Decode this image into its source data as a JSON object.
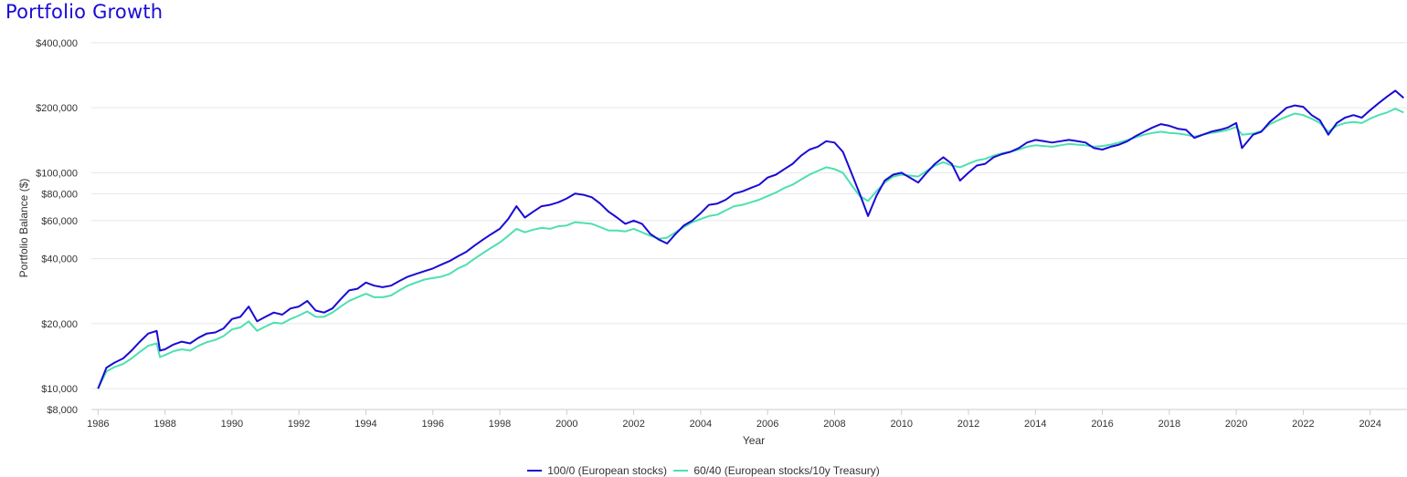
{
  "title": "Portfolio Growth",
  "chart_data": {
    "type": "line",
    "title": "Portfolio Growth",
    "xlabel": "Year",
    "ylabel": "Portfolio Balance ($)",
    "yscale": "log",
    "xlim": [
      1985.8,
      2025.1
    ],
    "ylim": [
      8000,
      530000
    ],
    "y_ticks": [
      400000,
      200000,
      100000,
      80000,
      60000,
      40000,
      20000,
      10000,
      8000
    ],
    "y_tick_labels": [
      "$400,000",
      "$200,000",
      "$100,000",
      "$80,000",
      "$60,000",
      "$40,000",
      "$20,000",
      "$10,000",
      "$8,000"
    ],
    "x_ticks": [
      1986,
      1988,
      1990,
      1992,
      1994,
      1996,
      1998,
      2000,
      2002,
      2004,
      2006,
      2008,
      2010,
      2012,
      2014,
      2016,
      2018,
      2020,
      2022,
      2024
    ],
    "x_tick_labels": [
      "1986",
      "1988",
      "1990",
      "1992",
      "1994",
      "1996",
      "1998",
      "2000",
      "2002",
      "2004",
      "2006",
      "2008",
      "2010",
      "2012",
      "2014",
      "2016",
      "2018",
      "2020",
      "2022",
      "2024"
    ],
    "grid": true,
    "legend_position": "bottom",
    "series": [
      {
        "name": "100/0 (European stocks)",
        "color": "#1a0ad4",
        "x": [
          1986.0,
          1986.25,
          1986.5,
          1986.75,
          1987.0,
          1987.25,
          1987.5,
          1987.75,
          1987.85,
          1988.0,
          1988.25,
          1988.5,
          1988.75,
          1989.0,
          1989.25,
          1989.5,
          1989.75,
          1990.0,
          1990.25,
          1990.5,
          1990.75,
          1991.0,
          1991.25,
          1991.5,
          1991.75,
          1992.0,
          1992.25,
          1992.5,
          1992.75,
          1993.0,
          1993.25,
          1993.5,
          1993.75,
          1994.0,
          1994.25,
          1994.5,
          1994.75,
          1995.0,
          1995.25,
          1995.5,
          1995.75,
          1996.0,
          1996.25,
          1996.5,
          1996.75,
          1997.0,
          1997.25,
          1997.5,
          1997.75,
          1998.0,
          1998.25,
          1998.5,
          1998.75,
          1999.0,
          1999.25,
          1999.5,
          1999.75,
          2000.0,
          2000.25,
          2000.5,
          2000.75,
          2001.0,
          2001.25,
          2001.5,
          2001.75,
          2002.0,
          2002.25,
          2002.5,
          2002.75,
          2003.0,
          2003.25,
          2003.5,
          2003.75,
          2004.0,
          2004.25,
          2004.5,
          2004.75,
          2005.0,
          2005.25,
          2005.5,
          2005.75,
          2006.0,
          2006.25,
          2006.5,
          2006.75,
          2007.0,
          2007.25,
          2007.5,
          2007.75,
          2008.0,
          2008.25,
          2008.5,
          2008.75,
          2009.0,
          2009.25,
          2009.5,
          2009.75,
          2010.0,
          2010.25,
          2010.5,
          2010.75,
          2011.0,
          2011.25,
          2011.5,
          2011.75,
          2012.0,
          2012.25,
          2012.5,
          2012.75,
          2013.0,
          2013.25,
          2013.5,
          2013.75,
          2014.0,
          2014.25,
          2014.5,
          2014.75,
          2015.0,
          2015.25,
          2015.5,
          2015.75,
          2016.0,
          2016.25,
          2016.5,
          2016.75,
          2017.0,
          2017.25,
          2017.5,
          2017.75,
          2018.0,
          2018.25,
          2018.5,
          2018.75,
          2019.0,
          2019.25,
          2019.5,
          2019.75,
          2020.0,
          2020.17,
          2020.5,
          2020.75,
          2021.0,
          2021.25,
          2021.5,
          2021.75,
          2022.0,
          2022.25,
          2022.5,
          2022.75,
          2023.0,
          2023.25,
          2023.5,
          2023.75,
          2024.0,
          2024.25,
          2024.5,
          2024.75,
          2025.0
        ],
        "values": [
          10000,
          12500,
          13200,
          13800,
          15000,
          16500,
          18000,
          18500,
          15000,
          15200,
          16000,
          16500,
          16200,
          17200,
          18000,
          18200,
          19000,
          21000,
          21500,
          24000,
          20500,
          21500,
          22500,
          22000,
          23500,
          24000,
          25500,
          23000,
          22500,
          23500,
          26000,
          28500,
          29000,
          31000,
          30000,
          29500,
          30000,
          31500,
          33000,
          34000,
          35000,
          36000,
          37500,
          39000,
          41000,
          43000,
          46000,
          49000,
          52000,
          55000,
          61000,
          70000,
          62000,
          66000,
          70000,
          71000,
          73000,
          76000,
          80000,
          79000,
          77000,
          72000,
          66000,
          62000,
          58000,
          60000,
          58000,
          52000,
          49000,
          47000,
          52000,
          57000,
          60000,
          65000,
          71000,
          72000,
          75000,
          80000,
          82000,
          85000,
          88000,
          95000,
          98000,
          104000,
          110000,
          120000,
          128000,
          132000,
          140000,
          138000,
          125000,
          100000,
          80000,
          63000,
          78000,
          92000,
          98000,
          100000,
          95000,
          90000,
          100000,
          110000,
          118000,
          110000,
          92000,
          100000,
          108000,
          110000,
          118000,
          122000,
          125000,
          130000,
          138000,
          142000,
          140000,
          138000,
          140000,
          142000,
          140000,
          138000,
          130000,
          128000,
          132000,
          135000,
          140000,
          148000,
          155000,
          162000,
          168000,
          165000,
          160000,
          158000,
          145000,
          150000,
          155000,
          158000,
          162000,
          170000,
          130000,
          150000,
          155000,
          172000,
          185000,
          200000,
          205000,
          202000,
          185000,
          175000,
          150000,
          170000,
          180000,
          185000,
          180000,
          195000,
          210000,
          225000,
          240000,
          222000
        ]
      },
      {
        "name": "60/40 (European stocks/10y Treasury)",
        "color": "#4de0b0",
        "x": [
          1986.0,
          1986.25,
          1986.5,
          1986.75,
          1987.0,
          1987.25,
          1987.5,
          1987.75,
          1987.85,
          1988.0,
          1988.25,
          1988.5,
          1988.75,
          1989.0,
          1989.25,
          1989.5,
          1989.75,
          1990.0,
          1990.25,
          1990.5,
          1990.75,
          1991.0,
          1991.25,
          1991.5,
          1991.75,
          1992.0,
          1992.25,
          1992.5,
          1992.75,
          1993.0,
          1993.25,
          1993.5,
          1993.75,
          1994.0,
          1994.25,
          1994.5,
          1994.75,
          1995.0,
          1995.25,
          1995.5,
          1995.75,
          1996.0,
          1996.25,
          1996.5,
          1996.75,
          1997.0,
          1997.25,
          1997.5,
          1997.75,
          1998.0,
          1998.25,
          1998.5,
          1998.75,
          1999.0,
          1999.25,
          1999.5,
          1999.75,
          2000.0,
          2000.25,
          2000.5,
          2000.75,
          2001.0,
          2001.25,
          2001.5,
          2001.75,
          2002.0,
          2002.25,
          2002.5,
          2002.75,
          2003.0,
          2003.25,
          2003.5,
          2003.75,
          2004.0,
          2004.25,
          2004.5,
          2004.75,
          2005.0,
          2005.25,
          2005.5,
          2005.75,
          2006.0,
          2006.25,
          2006.5,
          2006.75,
          2007.0,
          2007.25,
          2007.5,
          2007.75,
          2008.0,
          2008.25,
          2008.5,
          2008.75,
          2009.0,
          2009.25,
          2009.5,
          2009.75,
          2010.0,
          2010.25,
          2010.5,
          2010.75,
          2011.0,
          2011.25,
          2011.5,
          2011.75,
          2012.0,
          2012.25,
          2012.5,
          2012.75,
          2013.0,
          2013.25,
          2013.5,
          2013.75,
          2014.0,
          2014.25,
          2014.5,
          2014.75,
          2015.0,
          2015.25,
          2015.5,
          2015.75,
          2016.0,
          2016.25,
          2016.5,
          2016.75,
          2017.0,
          2017.25,
          2017.5,
          2017.75,
          2018.0,
          2018.25,
          2018.5,
          2018.75,
          2019.0,
          2019.25,
          2019.5,
          2019.75,
          2020.0,
          2020.17,
          2020.5,
          2020.75,
          2021.0,
          2021.25,
          2021.5,
          2021.75,
          2022.0,
          2022.25,
          2022.5,
          2022.75,
          2023.0,
          2023.25,
          2023.5,
          2023.75,
          2024.0,
          2024.25,
          2024.5,
          2024.75,
          2025.0
        ],
        "values": [
          10000,
          12000,
          12600,
          13000,
          13800,
          14800,
          15800,
          16200,
          14000,
          14300,
          14900,
          15200,
          15000,
          15800,
          16400,
          16800,
          17500,
          18800,
          19200,
          20500,
          18500,
          19400,
          20200,
          20000,
          21000,
          21800,
          22800,
          21500,
          21500,
          22500,
          24000,
          25500,
          26500,
          27500,
          26500,
          26500,
          27000,
          28500,
          30000,
          31000,
          32000,
          32500,
          33000,
          34000,
          36000,
          37500,
          40000,
          42500,
          45000,
          47500,
          51000,
          55000,
          53000,
          54500,
          55500,
          55000,
          56500,
          57000,
          59000,
          58500,
          58000,
          56000,
          54000,
          54000,
          53500,
          55000,
          53000,
          51000,
          49500,
          50000,
          53000,
          56000,
          59000,
          61000,
          63000,
          64000,
          67000,
          70000,
          71000,
          73000,
          75000,
          78000,
          81000,
          85000,
          88000,
          93000,
          98000,
          102000,
          106000,
          104000,
          100000,
          88000,
          78000,
          74000,
          82000,
          90000,
          96000,
          98000,
          97000,
          96000,
          102000,
          108000,
          112000,
          108000,
          106000,
          110000,
          114000,
          116000,
          120000,
          123000,
          125000,
          128000,
          132000,
          134000,
          133000,
          132000,
          134000,
          136000,
          135000,
          134000,
          132000,
          133000,
          135000,
          138000,
          142000,
          146000,
          150000,
          153000,
          155000,
          153000,
          152000,
          150000,
          147000,
          150000,
          153000,
          155000,
          158000,
          163000,
          150000,
          152000,
          156000,
          168000,
          175000,
          182000,
          188000,
          185000,
          178000,
          170000,
          155000,
          165000,
          170000,
          172000,
          170000,
          178000,
          185000,
          190000,
          198000,
          190000
        ]
      }
    ]
  }
}
